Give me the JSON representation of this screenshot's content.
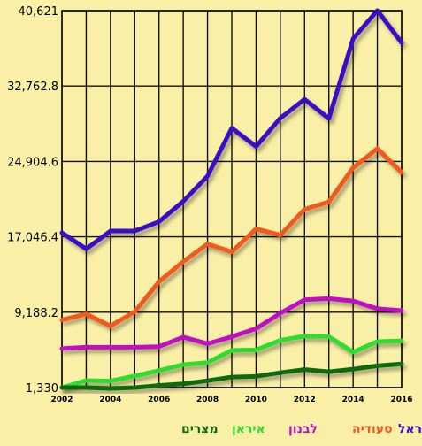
{
  "colors": {
    "background": "#f9efa6",
    "grid": "#111111"
  },
  "chart_data": {
    "type": "line",
    "x": [
      2002,
      2003,
      2004,
      2005,
      2006,
      2007,
      2008,
      2009,
      2010,
      2011,
      2012,
      2013,
      2014,
      2015,
      2016
    ],
    "xtick_labels": [
      "2002",
      "2004",
      "2006",
      "2008",
      "2010",
      "2012",
      "2014",
      "2016"
    ],
    "ytick_labels": [
      "40,621",
      "32,762.8",
      "24,904.6",
      "17,046.4",
      "9,188.2",
      "1,330"
    ],
    "ylim": [
      1330,
      40621
    ],
    "grid": true,
    "legend_position": "bottom",
    "series": [
      {
        "name": "ישראל",
        "color": "#3a0fc7",
        "values": [
          17480,
          15780,
          17650,
          17660,
          18620,
          20750,
          23370,
          28380,
          26460,
          29410,
          31380,
          29370,
          37700,
          40621,
          37280
        ]
      },
      {
        "name": "סעודיה",
        "color": "#f05a1e",
        "values": [
          8380,
          9000,
          7740,
          9240,
          12370,
          14470,
          16300,
          15480,
          17880,
          17220,
          19910,
          20690,
          24250,
          26240,
          23760
        ]
      },
      {
        "name": "לבנון",
        "color": "#c010c8",
        "values": [
          5400,
          5540,
          5540,
          5540,
          5600,
          6590,
          5900,
          6630,
          7470,
          9080,
          10480,
          10610,
          10360,
          9550,
          9350
        ]
      },
      {
        "name": "איראן",
        "color": "#2ddc2d",
        "values": [
          1330,
          2070,
          2010,
          2540,
          3100,
          3720,
          3940,
          5210,
          5260,
          6260,
          6700,
          6640,
          5030,
          6130,
          6190
        ]
      },
      {
        "name": "מצרים",
        "color": "#106b10",
        "values": [
          1330,
          1330,
          1240,
          1330,
          1550,
          1720,
          2050,
          2430,
          2500,
          2880,
          3210,
          2980,
          3250,
          3600,
          3800
        ]
      }
    ]
  }
}
